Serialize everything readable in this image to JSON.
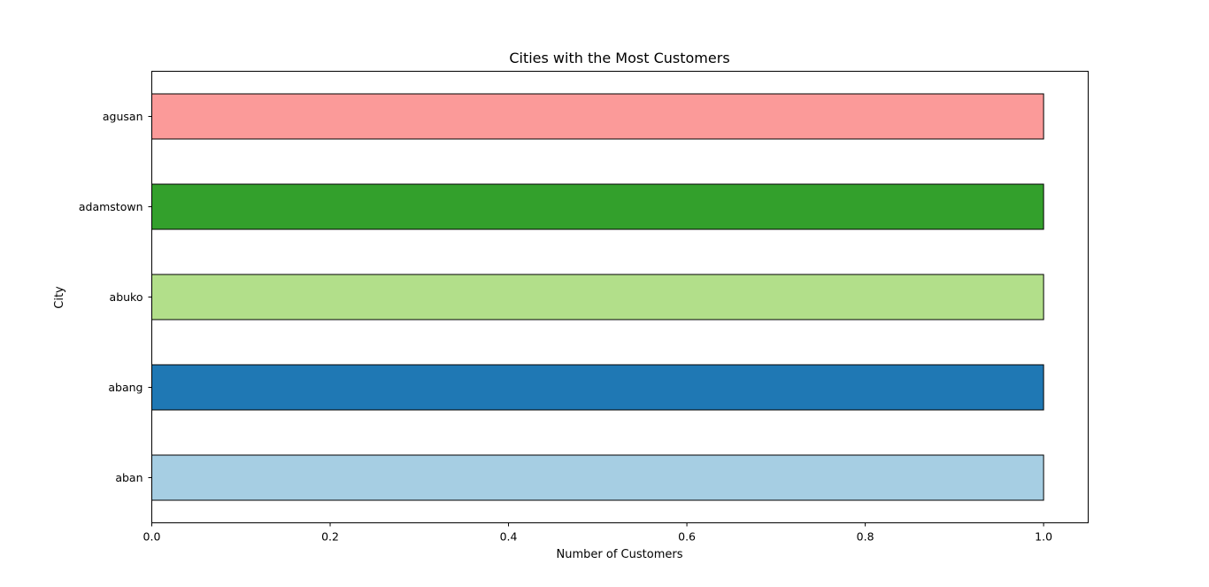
{
  "chart_data": {
    "type": "bar",
    "orientation": "horizontal",
    "title": "Cities with the Most Customers",
    "xlabel": "Number of Customers",
    "ylabel": "City",
    "categories": [
      "aban",
      "abang",
      "abuko",
      "adamstown",
      "agusan"
    ],
    "values": [
      1,
      1,
      1,
      1,
      1
    ],
    "colors": [
      "#a6cee3",
      "#1f78b4",
      "#b2df8a",
      "#33a02c",
      "#fb9a99"
    ],
    "xlim": [
      0,
      1.05
    ],
    "xticks": [
      0.0,
      0.2,
      0.4,
      0.6,
      0.8,
      1.0
    ],
    "xtick_labels": [
      "0.0",
      "0.2",
      "0.4",
      "0.6",
      "0.8",
      "1.0"
    ],
    "grid": false,
    "legend": false
  }
}
